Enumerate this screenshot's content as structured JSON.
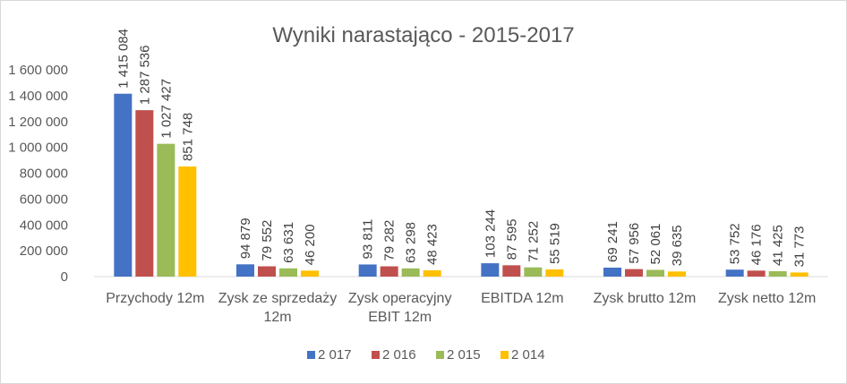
{
  "chart_data": {
    "type": "bar",
    "title": "Wyniki narastająco - 2015-2017",
    "xlabel": "",
    "ylabel": "",
    "ylim": [
      0,
      1600000
    ],
    "yticks": [
      0,
      200000,
      400000,
      600000,
      800000,
      1000000,
      1200000,
      1400000,
      1600000
    ],
    "ytick_labels": [
      "0",
      "200 000",
      "400 000",
      "600 000",
      "800 000",
      "1 000 000",
      "1 200 000",
      "1 400 000",
      "1 600 000"
    ],
    "grid": false,
    "legend_position": "bottom",
    "categories": [
      [
        "Przychody 12m"
      ],
      [
        "Zysk ze sprzedaży",
        "12m"
      ],
      [
        "Zysk operacyjny",
        "EBIT 12m"
      ],
      [
        "EBITDA 12m"
      ],
      [
        "Zysk brutto 12m"
      ],
      [
        "Zysk netto 12m"
      ]
    ],
    "series": [
      {
        "name": "2 017",
        "color": "#4472c4",
        "values": [
          1415084,
          94879,
          93811,
          103244,
          69241,
          53752
        ],
        "labels": [
          "1 415 084",
          "94 879",
          "93 811",
          "103 244",
          "69 241",
          "53 752"
        ]
      },
      {
        "name": "2 016",
        "color": "#c0504d",
        "values": [
          1287536,
          79552,
          79282,
          87595,
          57956,
          46176
        ],
        "labels": [
          "1 287 536",
          "79 552",
          "79 282",
          "87 595",
          "57 956",
          "46 176"
        ]
      },
      {
        "name": "2 015",
        "color": "#9bbb59",
        "values": [
          1027427,
          63631,
          63298,
          71252,
          52061,
          41425
        ],
        "labels": [
          "1 027 427",
          "63 631",
          "63 298",
          "71 252",
          "52 061",
          "41 425"
        ]
      },
      {
        "name": "2 014",
        "color": "#ffc000",
        "values": [
          851748,
          46200,
          48423,
          55519,
          39635,
          31773
        ],
        "labels": [
          "851 748",
          "46 200",
          "48 423",
          "55 519",
          "39 635",
          "31 773"
        ]
      }
    ]
  }
}
